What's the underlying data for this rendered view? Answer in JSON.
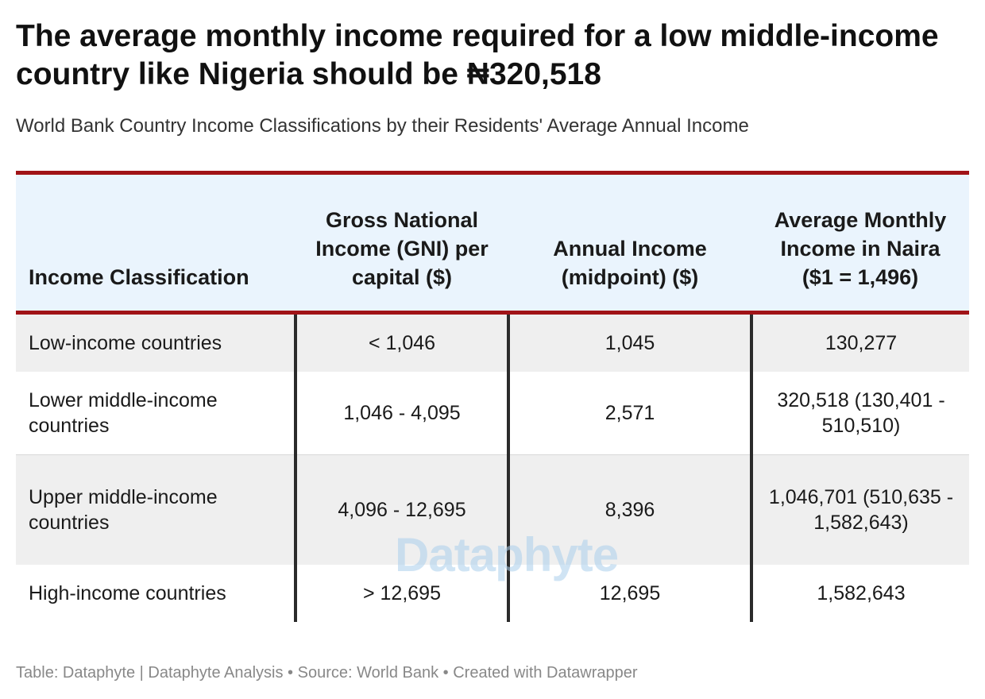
{
  "title": "The average monthly income required for a low middle-income country like Nigeria should be ₦320,518",
  "subtitle": "World Bank Country Income Classifications by their Residents' Average Annual Income",
  "chart_data": {
    "type": "table",
    "columns": [
      "Income Classification",
      "Gross National Income (GNI) per capital ($)",
      "Annual Income (midpoint) ($)",
      "Average Monthly Income in Naira ($1 = 1,496)"
    ],
    "rows": [
      [
        "Low-income countries",
        "< 1,046",
        "1,045",
        "130,277"
      ],
      [
        "Lower middle-income countries",
        "1,046 - 4,095",
        "2,571",
        "320,518 (130,401 - 510,510)"
      ],
      [
        "Upper middle-income countries",
        "4,096 - 12,695",
        "8,396",
        "1,046,701 (510,635 - 1,582,643)"
      ],
      [
        "High-income countries",
        "> 12,695",
        "12,695",
        "1,582,643"
      ]
    ]
  },
  "watermark": "Dataphyte",
  "footer": "Table: Dataphyte | Dataphyte Analysis • Source: World Bank • Created with Datawrapper",
  "colors": {
    "header_rule": "#a01317",
    "header_background": "#eaf4fd",
    "stripe_background": "#efefef",
    "column_separator": "#2b2b2b"
  }
}
